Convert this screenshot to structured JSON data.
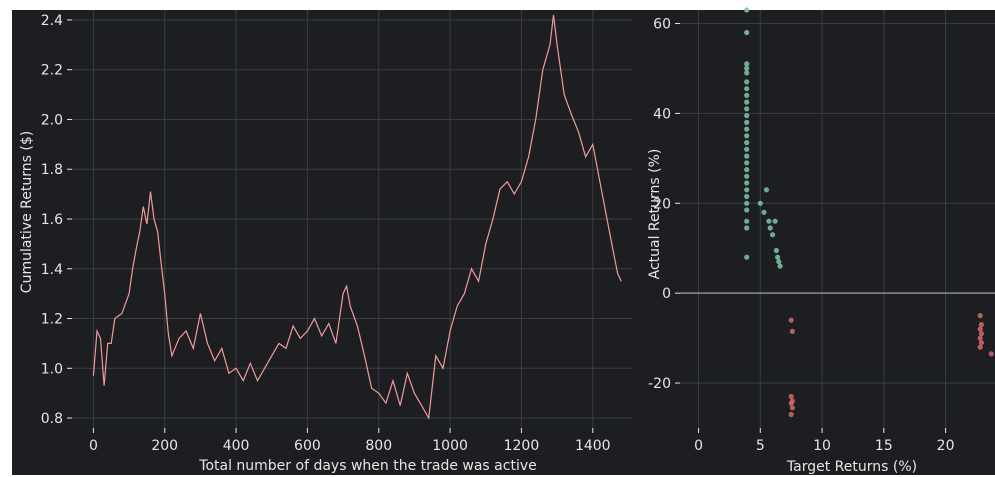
{
  "chart_data": [
    {
      "type": "line",
      "title": "",
      "xlabel": "Total number of days when the trade was active",
      "ylabel": "Cumulative Returns ($)",
      "xlim": [
        -60,
        1510
      ],
      "ylim": [
        0.76,
        2.44
      ],
      "xticks": [
        0,
        200,
        400,
        600,
        800,
        1000,
        1200,
        1400
      ],
      "yticks": [
        0.8,
        1.0,
        1.2,
        1.4,
        1.6,
        1.8,
        2.0,
        2.2,
        2.4
      ],
      "ytick_labels": [
        "0.8",
        "1.0",
        "1.2",
        "1.4",
        "1.6",
        "1.8",
        "2.0",
        "2.2",
        "2.4"
      ],
      "grid": true,
      "line_color": "#f19a9a",
      "series": [
        {
          "x": [
            0,
            10,
            20,
            30,
            40,
            50,
            60,
            80,
            100,
            110,
            120,
            130,
            140,
            150,
            160,
            170,
            180,
            190,
            200,
            210,
            220,
            240,
            260,
            280,
            300,
            320,
            340,
            360,
            380,
            400,
            420,
            440,
            460,
            480,
            500,
            520,
            540,
            560,
            580,
            600,
            620,
            640,
            660,
            680,
            700,
            710,
            720,
            740,
            760,
            780,
            800,
            820,
            840,
            860,
            880,
            900,
            920,
            940,
            960,
            980,
            1000,
            1020,
            1040,
            1060,
            1080,
            1100,
            1120,
            1140,
            1160,
            1180,
            1200,
            1220,
            1240,
            1260,
            1280,
            1290,
            1300,
            1320,
            1340,
            1360,
            1380,
            1400,
            1420,
            1440,
            1460,
            1470,
            1480
          ],
          "values": [
            0.97,
            1.15,
            1.12,
            0.93,
            1.1,
            1.1,
            1.2,
            1.22,
            1.3,
            1.4,
            1.48,
            1.55,
            1.65,
            1.58,
            1.71,
            1.6,
            1.55,
            1.42,
            1.3,
            1.14,
            1.05,
            1.12,
            1.15,
            1.08,
            1.22,
            1.1,
            1.03,
            1.08,
            0.98,
            1.0,
            0.95,
            1.02,
            0.95,
            1.0,
            1.05,
            1.1,
            1.08,
            1.17,
            1.12,
            1.15,
            1.2,
            1.13,
            1.18,
            1.1,
            1.3,
            1.33,
            1.25,
            1.17,
            1.05,
            0.92,
            0.9,
            0.86,
            0.95,
            0.85,
            0.98,
            0.9,
            0.85,
            0.8,
            1.05,
            1.0,
            1.15,
            1.25,
            1.3,
            1.4,
            1.35,
            1.5,
            1.6,
            1.72,
            1.75,
            1.7,
            1.75,
            1.85,
            2.0,
            2.2,
            2.3,
            2.42,
            2.3,
            2.1,
            2.02,
            1.95,
            1.85,
            1.9,
            1.75,
            1.6,
            1.45,
            1.38,
            1.35
          ]
        }
      ]
    },
    {
      "type": "scatter",
      "title": "",
      "xlabel": "Target Returns (%)",
      "ylabel": "Actual Returns (%)",
      "xlim": [
        -1.5,
        24
      ],
      "ylim": [
        -30,
        63
      ],
      "xticks": [
        0,
        5,
        10,
        15,
        20
      ],
      "yticks": [
        -20,
        0,
        20,
        40,
        60
      ],
      "ytick_labels": [
        "-20",
        "0",
        "20",
        "40",
        "60"
      ],
      "grid": true,
      "zero_line": true,
      "series": [
        {
          "color": "#7fc5a6",
          "points": [
            [
              3.9,
              63
            ],
            [
              3.9,
              58
            ],
            [
              3.9,
              51
            ],
            [
              3.9,
              50
            ],
            [
              3.9,
              49
            ],
            [
              3.9,
              47
            ],
            [
              3.9,
              45.5
            ],
            [
              3.9,
              44
            ],
            [
              3.9,
              42.5
            ],
            [
              3.9,
              41
            ],
            [
              3.9,
              39.5
            ],
            [
              3.9,
              38
            ],
            [
              3.9,
              36.5
            ],
            [
              3.9,
              35
            ],
            [
              3.9,
              33.5
            ],
            [
              3.9,
              32
            ],
            [
              3.9,
              30.5
            ],
            [
              3.9,
              29
            ],
            [
              3.9,
              27.5
            ],
            [
              3.9,
              26
            ],
            [
              3.9,
              24.5
            ],
            [
              3.9,
              23
            ],
            [
              3.9,
              21.5
            ],
            [
              3.9,
              20
            ],
            [
              3.9,
              18.5
            ],
            [
              3.9,
              16
            ],
            [
              3.9,
              14.5
            ],
            [
              3.9,
              8
            ],
            [
              5.0,
              20
            ],
            [
              5.3,
              18
            ],
            [
              5.5,
              23
            ],
            [
              5.7,
              16
            ],
            [
              5.8,
              14.5
            ],
            [
              6.0,
              13
            ],
            [
              6.2,
              16
            ],
            [
              6.3,
              9.5
            ],
            [
              6.4,
              8
            ],
            [
              6.5,
              7
            ],
            [
              6.6,
              6
            ]
          ]
        },
        {
          "color": "#d36a6a",
          "points": [
            [
              7.5,
              -6
            ],
            [
              7.6,
              -8.5
            ],
            [
              7.5,
              -23
            ],
            [
              7.6,
              -24
            ],
            [
              7.5,
              -24.5
            ],
            [
              7.6,
              -25.5
            ],
            [
              7.5,
              -27
            ],
            [
              22.8,
              -5
            ],
            [
              22.9,
              -7
            ],
            [
              22.8,
              -8
            ],
            [
              22.9,
              -9
            ],
            [
              22.8,
              -10
            ],
            [
              22.9,
              -11
            ],
            [
              22.8,
              -12
            ],
            [
              23.7,
              -13.5
            ]
          ]
        }
      ]
    }
  ],
  "colors": {
    "panel_background": "#1c1e22",
    "grid": "#3a3d42",
    "text": "#e6e6e6",
    "line": "#f19a9a",
    "scatter_positive": "#7fc5a6",
    "scatter_negative": "#d36a6a"
  }
}
